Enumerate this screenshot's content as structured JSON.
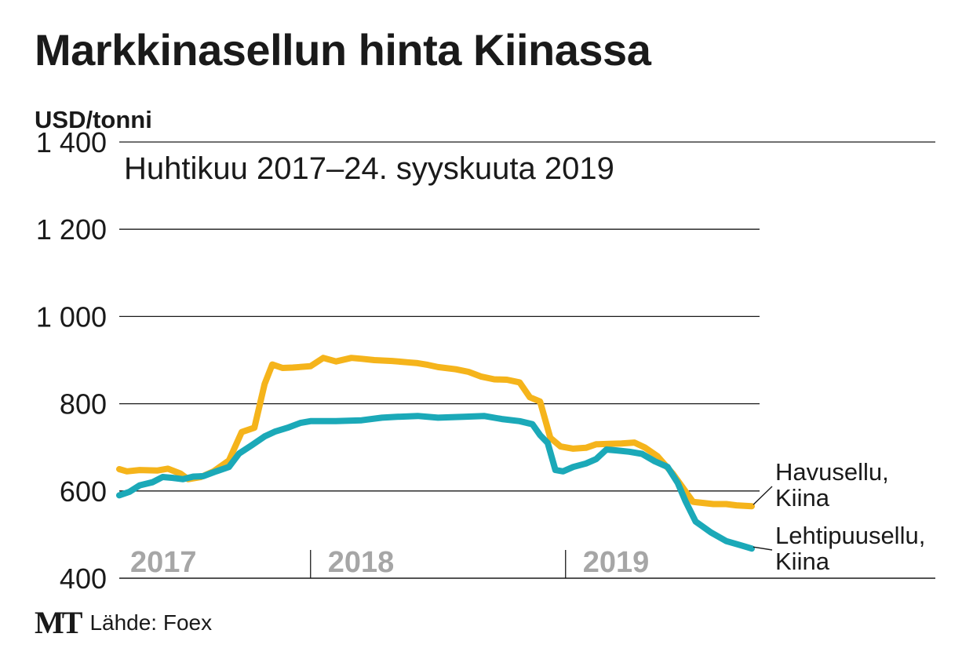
{
  "title": "Markkinasellun hinta Kiinassa",
  "unit_label": "USD/tonni",
  "subtitle": "Huhtikuu 2017–24. syyskuuta 2019",
  "source": {
    "logo": "MT",
    "text": "Lähde: Foex"
  },
  "colors": {
    "havusellu": "#f5b41b",
    "lehtipuusellu": "#1ba9b8",
    "gridline": "#1a1a1a",
    "year_label": "#a6a6a6"
  },
  "chart_data": {
    "type": "line",
    "title": "Markkinasellun hinta Kiinassa",
    "subtitle": "Huhtikuu 2017–24. syyskuuta 2019",
    "ylabel": "USD/tonni",
    "xlabel": "",
    "ylim": [
      400,
      1400
    ],
    "xlim": [
      2017.25,
      2019.73
    ],
    "y_ticks": [
      {
        "value": 1400,
        "label": "1 400"
      },
      {
        "value": 1200,
        "label": "1 200"
      },
      {
        "value": 1000,
        "label": "1 000"
      },
      {
        "value": 800,
        "label": "800"
      },
      {
        "value": 600,
        "label": "600"
      },
      {
        "value": 400,
        "label": "400"
      }
    ],
    "years": [
      {
        "label": "2017",
        "start": 2017.25
      },
      {
        "label": "2018",
        "start": 2018.0
      },
      {
        "label": "2019",
        "start": 2019.0
      }
    ],
    "grid": true,
    "legend": "inline-right",
    "series": [
      {
        "name": "Havusellu, Kiina",
        "name_lines": [
          "Havusellu,",
          "Kiina"
        ],
        "color": "#f5b41b",
        "x": [
          2017.25,
          2017.28,
          2017.33,
          2017.4,
          2017.44,
          2017.49,
          2017.52,
          2017.57,
          2017.62,
          2017.68,
          2017.73,
          2017.78,
          2017.82,
          2017.85,
          2017.89,
          2017.93,
          2018.0,
          2018.05,
          2018.1,
          2018.16,
          2018.2,
          2018.25,
          2018.32,
          2018.38,
          2018.42,
          2018.46,
          2018.5,
          2018.57,
          2018.62,
          2018.67,
          2018.72,
          2018.77,
          2018.82,
          2018.86,
          2018.9,
          2018.94,
          2018.98,
          2019.03,
          2019.08,
          2019.12,
          2019.17,
          2019.22,
          2019.27,
          2019.31,
          2019.36,
          2019.42,
          2019.5,
          2019.58,
          2019.63,
          2019.67,
          2019.73
        ],
        "values": [
          650,
          645,
          648,
          647,
          651,
          640,
          627,
          632,
          645,
          670,
          735,
          745,
          845,
          890,
          882,
          883,
          886,
          905,
          897,
          905,
          903,
          900,
          898,
          895,
          893,
          889,
          884,
          879,
          873,
          862,
          856,
          855,
          849,
          815,
          805,
          722,
          702,
          697,
          699,
          707,
          708,
          709,
          711,
          700,
          680,
          640,
          575,
          570,
          570,
          567,
          565
        ]
      },
      {
        "name": "Lehtipuusellu, Kiina",
        "name_lines": [
          "Lehtipuusellu,",
          "Kiina"
        ],
        "color": "#1ba9b8",
        "x": [
          2017.25,
          2017.29,
          2017.33,
          2017.38,
          2017.42,
          2017.46,
          2017.5,
          2017.54,
          2017.58,
          2017.63,
          2017.68,
          2017.72,
          2017.77,
          2017.82,
          2017.86,
          2017.91,
          2017.96,
          2018.0,
          2018.1,
          2018.2,
          2018.28,
          2018.34,
          2018.42,
          2018.5,
          2018.6,
          2018.68,
          2018.75,
          2018.82,
          2018.87,
          2018.9,
          2018.93,
          2018.96,
          2018.99,
          2019.03,
          2019.08,
          2019.12,
          2019.16,
          2019.2,
          2019.25,
          2019.3,
          2019.35,
          2019.4,
          2019.44,
          2019.47,
          2019.51,
          2019.57,
          2019.63,
          2019.69,
          2019.73
        ],
        "values": [
          590,
          598,
          613,
          620,
          632,
          630,
          627,
          633,
          634,
          645,
          655,
          686,
          705,
          725,
          736,
          745,
          756,
          760,
          760,
          762,
          768,
          770,
          772,
          768,
          770,
          772,
          765,
          760,
          753,
          728,
          710,
          648,
          645,
          655,
          663,
          673,
          695,
          693,
          690,
          685,
          668,
          655,
          618,
          577,
          530,
          505,
          485,
          475,
          468
        ]
      }
    ]
  }
}
